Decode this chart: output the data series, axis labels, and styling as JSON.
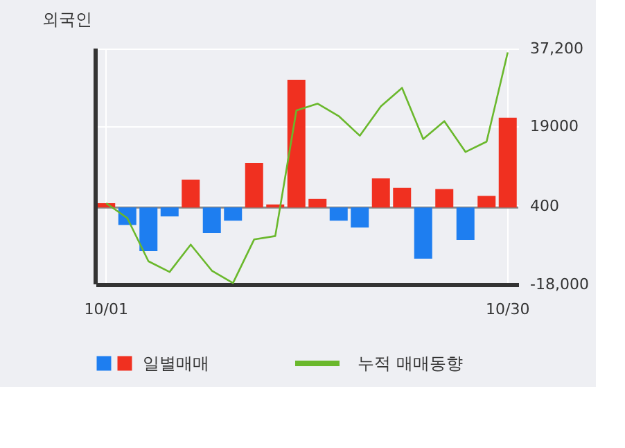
{
  "chart_data": {
    "type": "bar",
    "title": "외국인",
    "categories": [
      "10/01",
      null,
      null,
      null,
      null,
      null,
      null,
      null,
      null,
      null,
      null,
      null,
      null,
      null,
      null,
      null,
      null,
      null,
      null,
      "10/30"
    ],
    "series": [
      {
        "name": "일별매매",
        "colors": [
          "#f03020",
          "#1e7ef0",
          "#1e7ef0",
          "#1e7ef0",
          "#f03020",
          "#1e7ef0",
          "#1e7ef0",
          "#f03020",
          "#f03020",
          "#f03020",
          "#f03020",
          "#1e7ef0",
          "#1e7ef0",
          "#f03020",
          "#f03020",
          "#1e7ef0",
          "#f03020",
          "#1e7ef0",
          "#f03020",
          "#f03020"
        ],
        "values": [
          1000,
          -4100,
          -10200,
          -2100,
          6500,
          -6000,
          -3100,
          10400,
          700,
          29900,
          2000,
          -3100,
          -4700,
          6800,
          4600,
          -12000,
          4300,
          -7600,
          2700,
          21000
        ]
      },
      {
        "name": "누적 매매동향",
        "type": "line",
        "color": "#6ab82c",
        "values": [
          1000,
          -2500,
          -12600,
          -15100,
          -8700,
          -14800,
          -17700,
          -7500,
          -6700,
          22700,
          24300,
          21400,
          16800,
          23700,
          28000,
          16000,
          20200,
          13000,
          15400,
          36300
        ]
      }
    ],
    "ylim": [
      -18000,
      37200
    ],
    "yticks": [
      {
        "value": 37200,
        "label": "37,200"
      },
      19000,
      400,
      {
        "value": -18000,
        "label": "-18,000"
      }
    ],
    "grid": true,
    "legend": "bottom"
  }
}
